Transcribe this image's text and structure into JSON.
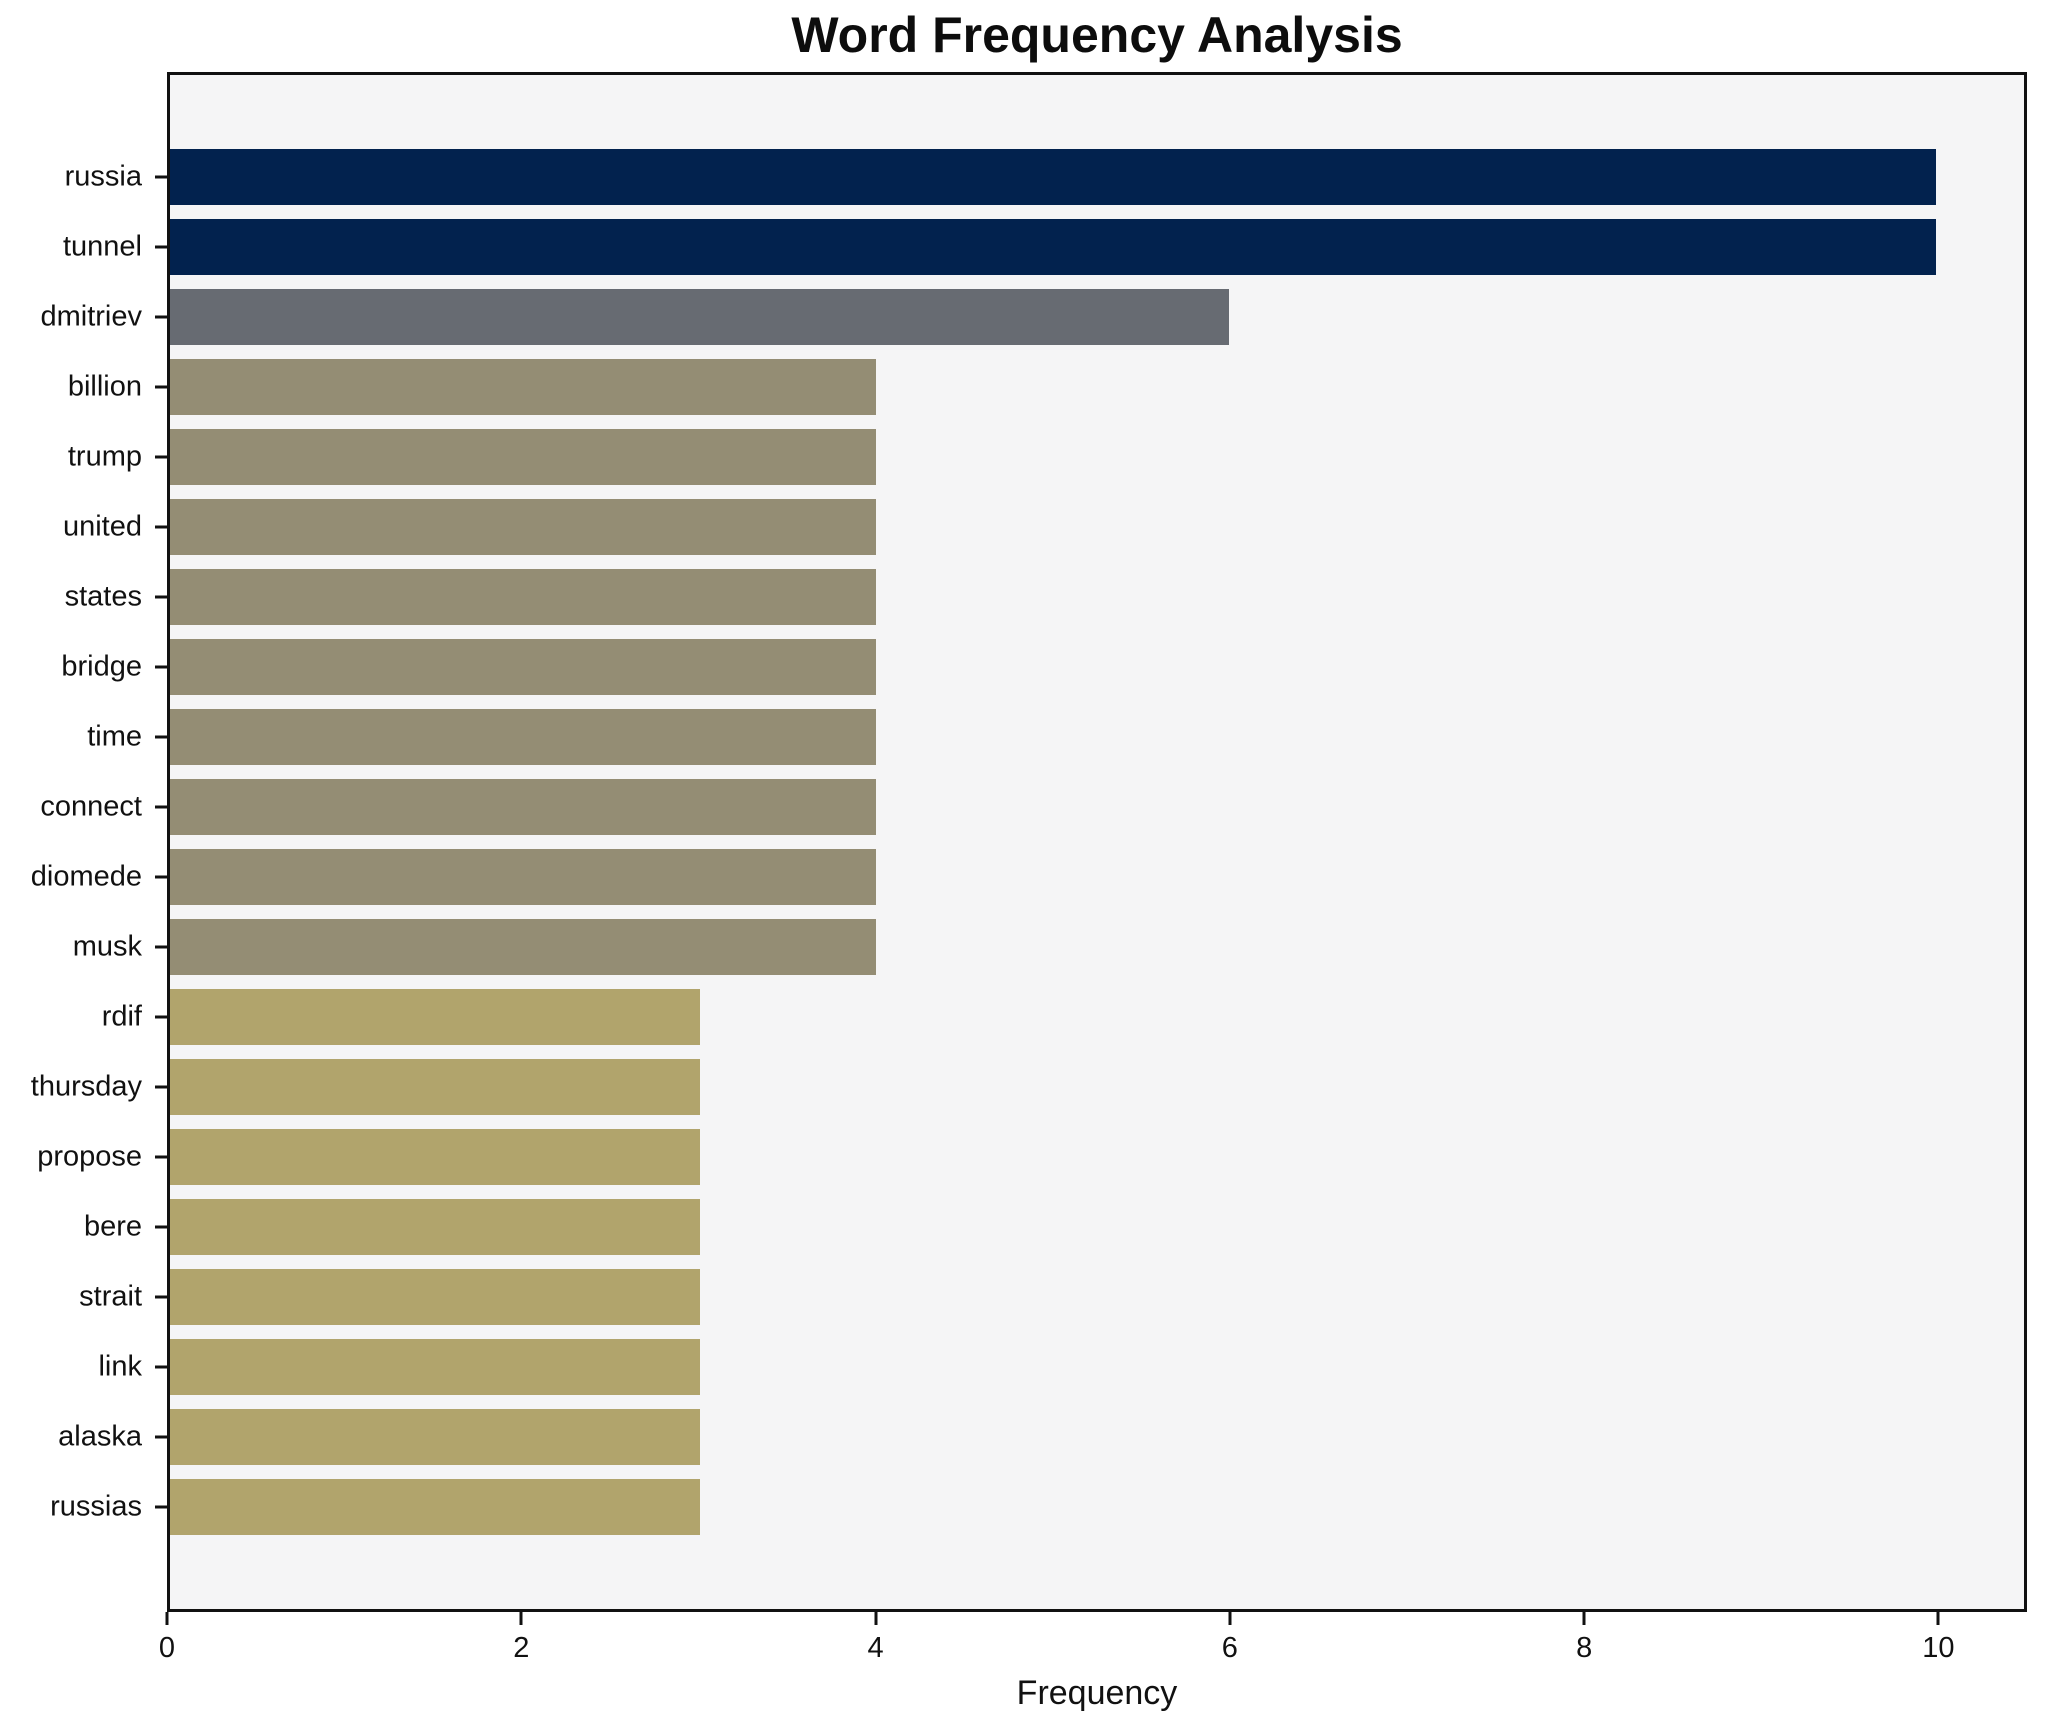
{
  "chart_data": {
    "type": "bar",
    "orientation": "horizontal",
    "title": "Word Frequency Analysis",
    "xlabel": "Frequency",
    "ylabel": "",
    "categories": [
      "russia",
      "tunnel",
      "dmitriev",
      "billion",
      "trump",
      "united",
      "states",
      "bridge",
      "time",
      "connect",
      "diomede",
      "musk",
      "rdif",
      "thursday",
      "propose",
      "bere",
      "strait",
      "link",
      "alaska",
      "russias"
    ],
    "values": [
      10,
      10,
      6,
      4,
      4,
      4,
      4,
      4,
      4,
      4,
      4,
      4,
      3,
      3,
      3,
      3,
      3,
      3,
      3,
      3
    ],
    "bar_colors": [
      "#02224e",
      "#02224e",
      "#676b72",
      "#948d74",
      "#948d74",
      "#948d74",
      "#948d74",
      "#948d74",
      "#948d74",
      "#948d74",
      "#948d74",
      "#948d74",
      "#b1a46c",
      "#b1a46c",
      "#b1a46c",
      "#b1a46c",
      "#b1a46c",
      "#b1a46c",
      "#b1a46c",
      "#b1a46c"
    ],
    "xlim": [
      0,
      10.5
    ],
    "xticks": [
      0,
      2,
      4,
      6,
      8,
      10
    ],
    "grid": "off",
    "legend": "none",
    "plot_background": "#f5f5f6",
    "figure_background": "#ffffff",
    "palette": {
      "freq_10": "#02224e",
      "freq_6": "#676b72",
      "freq_4": "#948d74",
      "freq_3": "#b1a46c"
    }
  }
}
